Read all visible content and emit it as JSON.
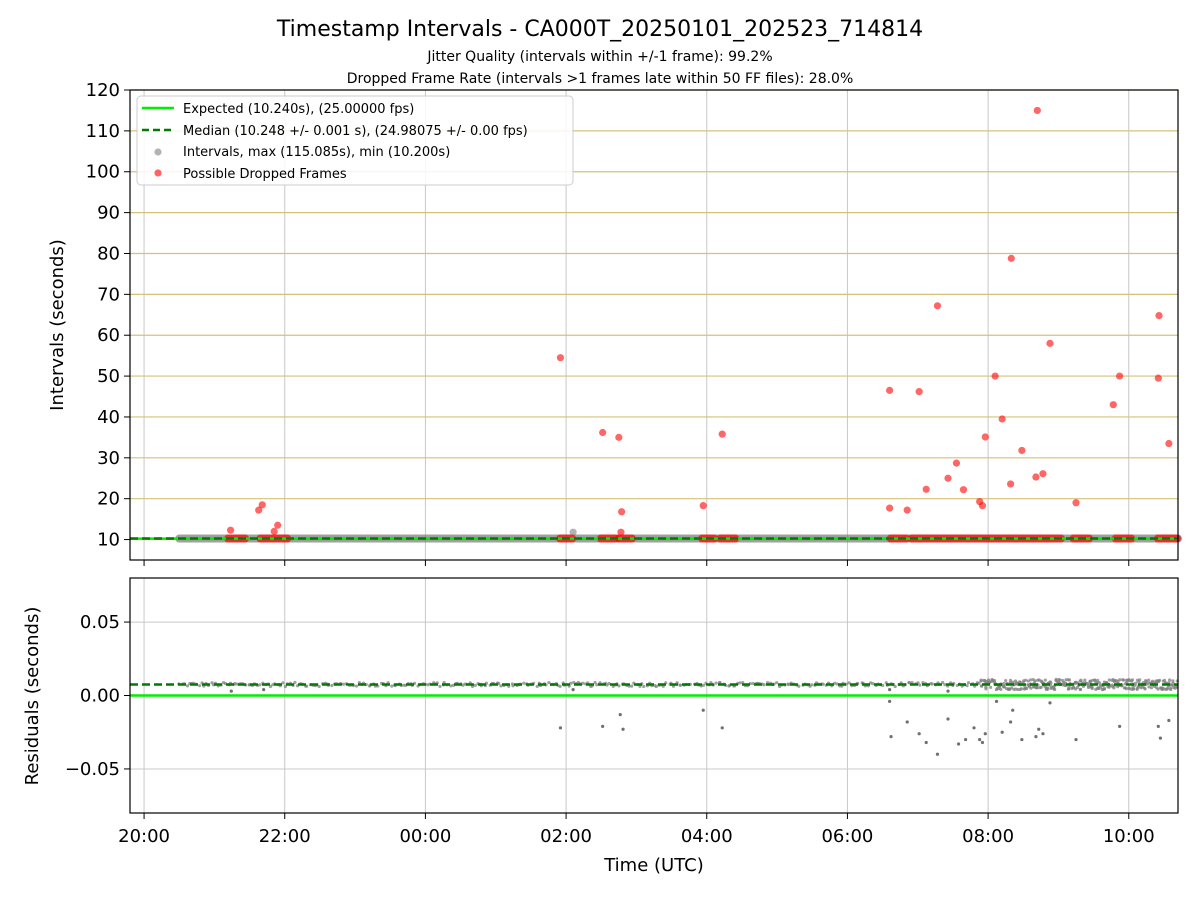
{
  "chart_data": [
    {
      "type": "scatter",
      "panel": "intervals",
      "title": "Timestamp Intervals - CA000T_20250101_202523_714814",
      "subtitle_1": "Jitter Quality (intervals within +/-1 frame): 99.2%",
      "subtitle_2": "Dropped Frame Rate (intervals >1 frames late within 50 FF files): 28.0%",
      "xlabel": "",
      "ylabel": "Intervals (seconds)",
      "x_unit": "hours from 2025-01-01 00:00 UTC",
      "xlim": [
        -4.2,
        10.7
      ],
      "ylim": [
        5,
        120
      ],
      "y_ticks": [
        "10",
        "20",
        "30",
        "40",
        "50",
        "60",
        "70",
        "80",
        "90",
        "100",
        "110",
        "120"
      ],
      "grid": "x gray, y khaki",
      "legend_placement": "upper-left",
      "legend": [
        "Expected (10.240s), (25.00000 fps)",
        "Median (10.248 +/- 0.001 s), (24.98075 +/- 0.00 fps)",
        "Intervals, max (115.085s), min (10.200s)",
        "Possible Dropped Frames"
      ],
      "colors": {
        "expected": "#00ee00",
        "median": "#007a00",
        "intervals": "#808080",
        "dropped": "#ff0000",
        "ygrid": "#d4c27a"
      },
      "expected_value": 10.24,
      "median_value": 10.248,
      "intervals_x_range": [
        -3.5,
        10.7
      ],
      "extra_intervals": [
        {
          "x": 2.1,
          "y": 11.8
        }
      ],
      "dropped_points": [
        {
          "x": -2.77,
          "y": 12.3
        },
        {
          "x": -2.37,
          "y": 17.2
        },
        {
          "x": -2.32,
          "y": 18.5
        },
        {
          "x": -2.15,
          "y": 12.0
        },
        {
          "x": -2.1,
          "y": 13.5
        },
        {
          "x": 1.92,
          "y": 54.5
        },
        {
          "x": 2.52,
          "y": 36.2
        },
        {
          "x": 2.75,
          "y": 35.0
        },
        {
          "x": 2.79,
          "y": 16.8
        },
        {
          "x": 2.78,
          "y": 11.8
        },
        {
          "x": 3.95,
          "y": 18.3
        },
        {
          "x": 4.22,
          "y": 35.8
        },
        {
          "x": 6.6,
          "y": 46.5
        },
        {
          "x": 6.6,
          "y": 17.7
        },
        {
          "x": 6.85,
          "y": 17.2
        },
        {
          "x": 7.02,
          "y": 46.2
        },
        {
          "x": 7.12,
          "y": 22.3
        },
        {
          "x": 7.28,
          "y": 67.2
        },
        {
          "x": 7.43,
          "y": 25.0
        },
        {
          "x": 7.55,
          "y": 28.7
        },
        {
          "x": 7.65,
          "y": 22.2
        },
        {
          "x": 7.88,
          "y": 19.3
        },
        {
          "x": 7.92,
          "y": 18.3
        },
        {
          "x": 7.96,
          "y": 35.1
        },
        {
          "x": 8.1,
          "y": 50.0
        },
        {
          "x": 8.2,
          "y": 39.5
        },
        {
          "x": 8.32,
          "y": 23.6
        },
        {
          "x": 8.33,
          "y": 78.8
        },
        {
          "x": 8.48,
          "y": 31.8
        },
        {
          "x": 8.68,
          "y": 25.3
        },
        {
          "x": 8.7,
          "y": 115.0
        },
        {
          "x": 8.78,
          "y": 26.1
        },
        {
          "x": 8.88,
          "y": 58.0
        },
        {
          "x": 9.25,
          "y": 19.0
        },
        {
          "x": 9.78,
          "y": 43.0
        },
        {
          "x": 9.87,
          "y": 50.0
        },
        {
          "x": 10.42,
          "y": 49.5
        },
        {
          "x": 10.43,
          "y": 64.8
        },
        {
          "x": 10.57,
          "y": 33.5
        }
      ],
      "dropped_baseline_segments": [
        [
          -2.82,
          -2.55
        ],
        [
          -2.36,
          -1.95
        ],
        [
          1.9,
          2.1
        ],
        [
          2.48,
          2.72
        ],
        [
          2.74,
          2.95
        ],
        [
          3.92,
          4.12
        ],
        [
          4.18,
          4.42
        ],
        [
          6.6,
          6.85
        ],
        [
          6.9,
          9.05
        ],
        [
          9.2,
          9.45
        ],
        [
          9.8,
          10.05
        ],
        [
          10.4,
          10.7
        ]
      ]
    },
    {
      "type": "scatter",
      "panel": "residuals",
      "xlabel": "Time (UTC)",
      "ylabel": "Residuals (seconds)",
      "x_unit": "hours from 2025-01-01 00:00 UTC",
      "xlim": [
        -4.2,
        10.7
      ],
      "ylim": [
        -0.08,
        0.08
      ],
      "y_ticks": [
        "−0.05",
        "0.00",
        "0.05"
      ],
      "x_ticks": [
        "20:00",
        "22:00",
        "00:00",
        "02:00",
        "04:00",
        "06:00",
        "08:00",
        "10:00"
      ],
      "expected_residual": 0.0,
      "median_residual": 0.0075,
      "residual_band": {
        "x_range": [
          -3.5,
          10.7
        ],
        "dense_from": 7.9
      },
      "residual_outliers": [
        {
          "x": -2.76,
          "y": 0.003
        },
        {
          "x": -2.3,
          "y": 0.004
        },
        {
          "x": 2.1,
          "y": 0.004
        },
        {
          "x": 1.92,
          "y": -0.022
        },
        {
          "x": 2.52,
          "y": -0.021
        },
        {
          "x": 2.77,
          "y": -0.013
        },
        {
          "x": 2.81,
          "y": -0.023
        },
        {
          "x": 3.95,
          "y": -0.01
        },
        {
          "x": 4.22,
          "y": -0.022
        },
        {
          "x": 6.6,
          "y": 0.004
        },
        {
          "x": 6.6,
          "y": -0.004
        },
        {
          "x": 6.62,
          "y": -0.028
        },
        {
          "x": 6.85,
          "y": -0.018
        },
        {
          "x": 7.02,
          "y": -0.026
        },
        {
          "x": 7.12,
          "y": -0.032
        },
        {
          "x": 7.28,
          "y": -0.04
        },
        {
          "x": 7.43,
          "y": 0.003
        },
        {
          "x": 7.43,
          "y": -0.016
        },
        {
          "x": 7.58,
          "y": -0.033
        },
        {
          "x": 7.68,
          "y": -0.03
        },
        {
          "x": 7.8,
          "y": -0.022
        },
        {
          "x": 7.88,
          "y": -0.03
        },
        {
          "x": 7.92,
          "y": -0.032
        },
        {
          "x": 7.96,
          "y": -0.026
        },
        {
          "x": 8.12,
          "y": -0.004
        },
        {
          "x": 8.2,
          "y": -0.025
        },
        {
          "x": 8.32,
          "y": -0.018
        },
        {
          "x": 8.35,
          "y": -0.01
        },
        {
          "x": 8.48,
          "y": -0.03
        },
        {
          "x": 8.68,
          "y": -0.028
        },
        {
          "x": 8.72,
          "y": -0.023
        },
        {
          "x": 8.78,
          "y": -0.026
        },
        {
          "x": 8.88,
          "y": -0.005
        },
        {
          "x": 9.25,
          "y": -0.03
        },
        {
          "x": 9.87,
          "y": -0.021
        },
        {
          "x": 10.42,
          "y": -0.021
        },
        {
          "x": 10.45,
          "y": -0.029
        },
        {
          "x": 10.57,
          "y": -0.017
        }
      ]
    }
  ]
}
